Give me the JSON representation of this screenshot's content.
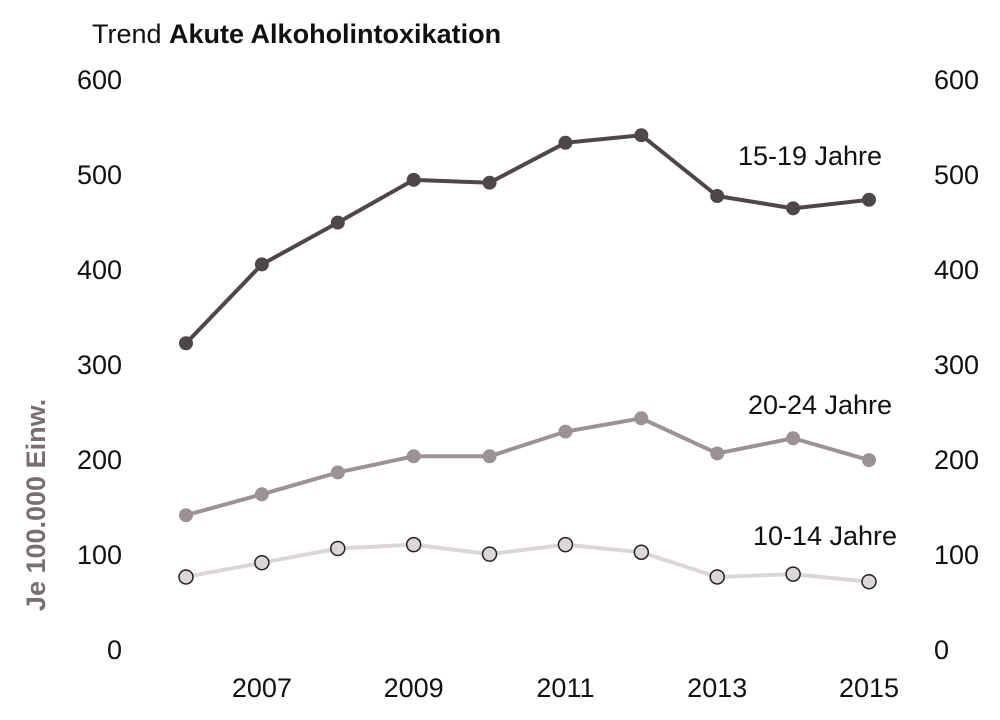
{
  "chart_data": {
    "type": "line",
    "title": {
      "prefix": "Trend",
      "main": "Akute Alkoholintoxikation"
    },
    "y_label": "Je 100.000 Einw.",
    "x": [
      2006,
      2007,
      2008,
      2009,
      2010,
      2011,
      2012,
      2013,
      2014,
      2015
    ],
    "xlim": [
      2006,
      2015
    ],
    "xticks": [
      2007,
      2009,
      2011,
      2013,
      2015
    ],
    "ylim": [
      0,
      600
    ],
    "yticks": [
      0,
      100,
      200,
      300,
      400,
      500,
      600
    ],
    "grid": false,
    "series": [
      {
        "name": "15-19 Jahre",
        "color": "#4e464b",
        "marker_fill": "#4e464b",
        "values": [
          325,
          408,
          452,
          497,
          494,
          536,
          544,
          480,
          467,
          476
        ]
      },
      {
        "name": "20-24 Jahre",
        "color": "#9b9196",
        "marker_fill": "#9b9196",
        "values": [
          144,
          166,
          189,
          206,
          206,
          232,
          246,
          209,
          225,
          202
        ]
      },
      {
        "name": "10-14 Jahre",
        "color": "#ddd6d9",
        "marker_fill": "#ddd6d9",
        "values": [
          79,
          94,
          109,
          113,
          103,
          113,
          105,
          79,
          82,
          74
        ]
      }
    ]
  }
}
